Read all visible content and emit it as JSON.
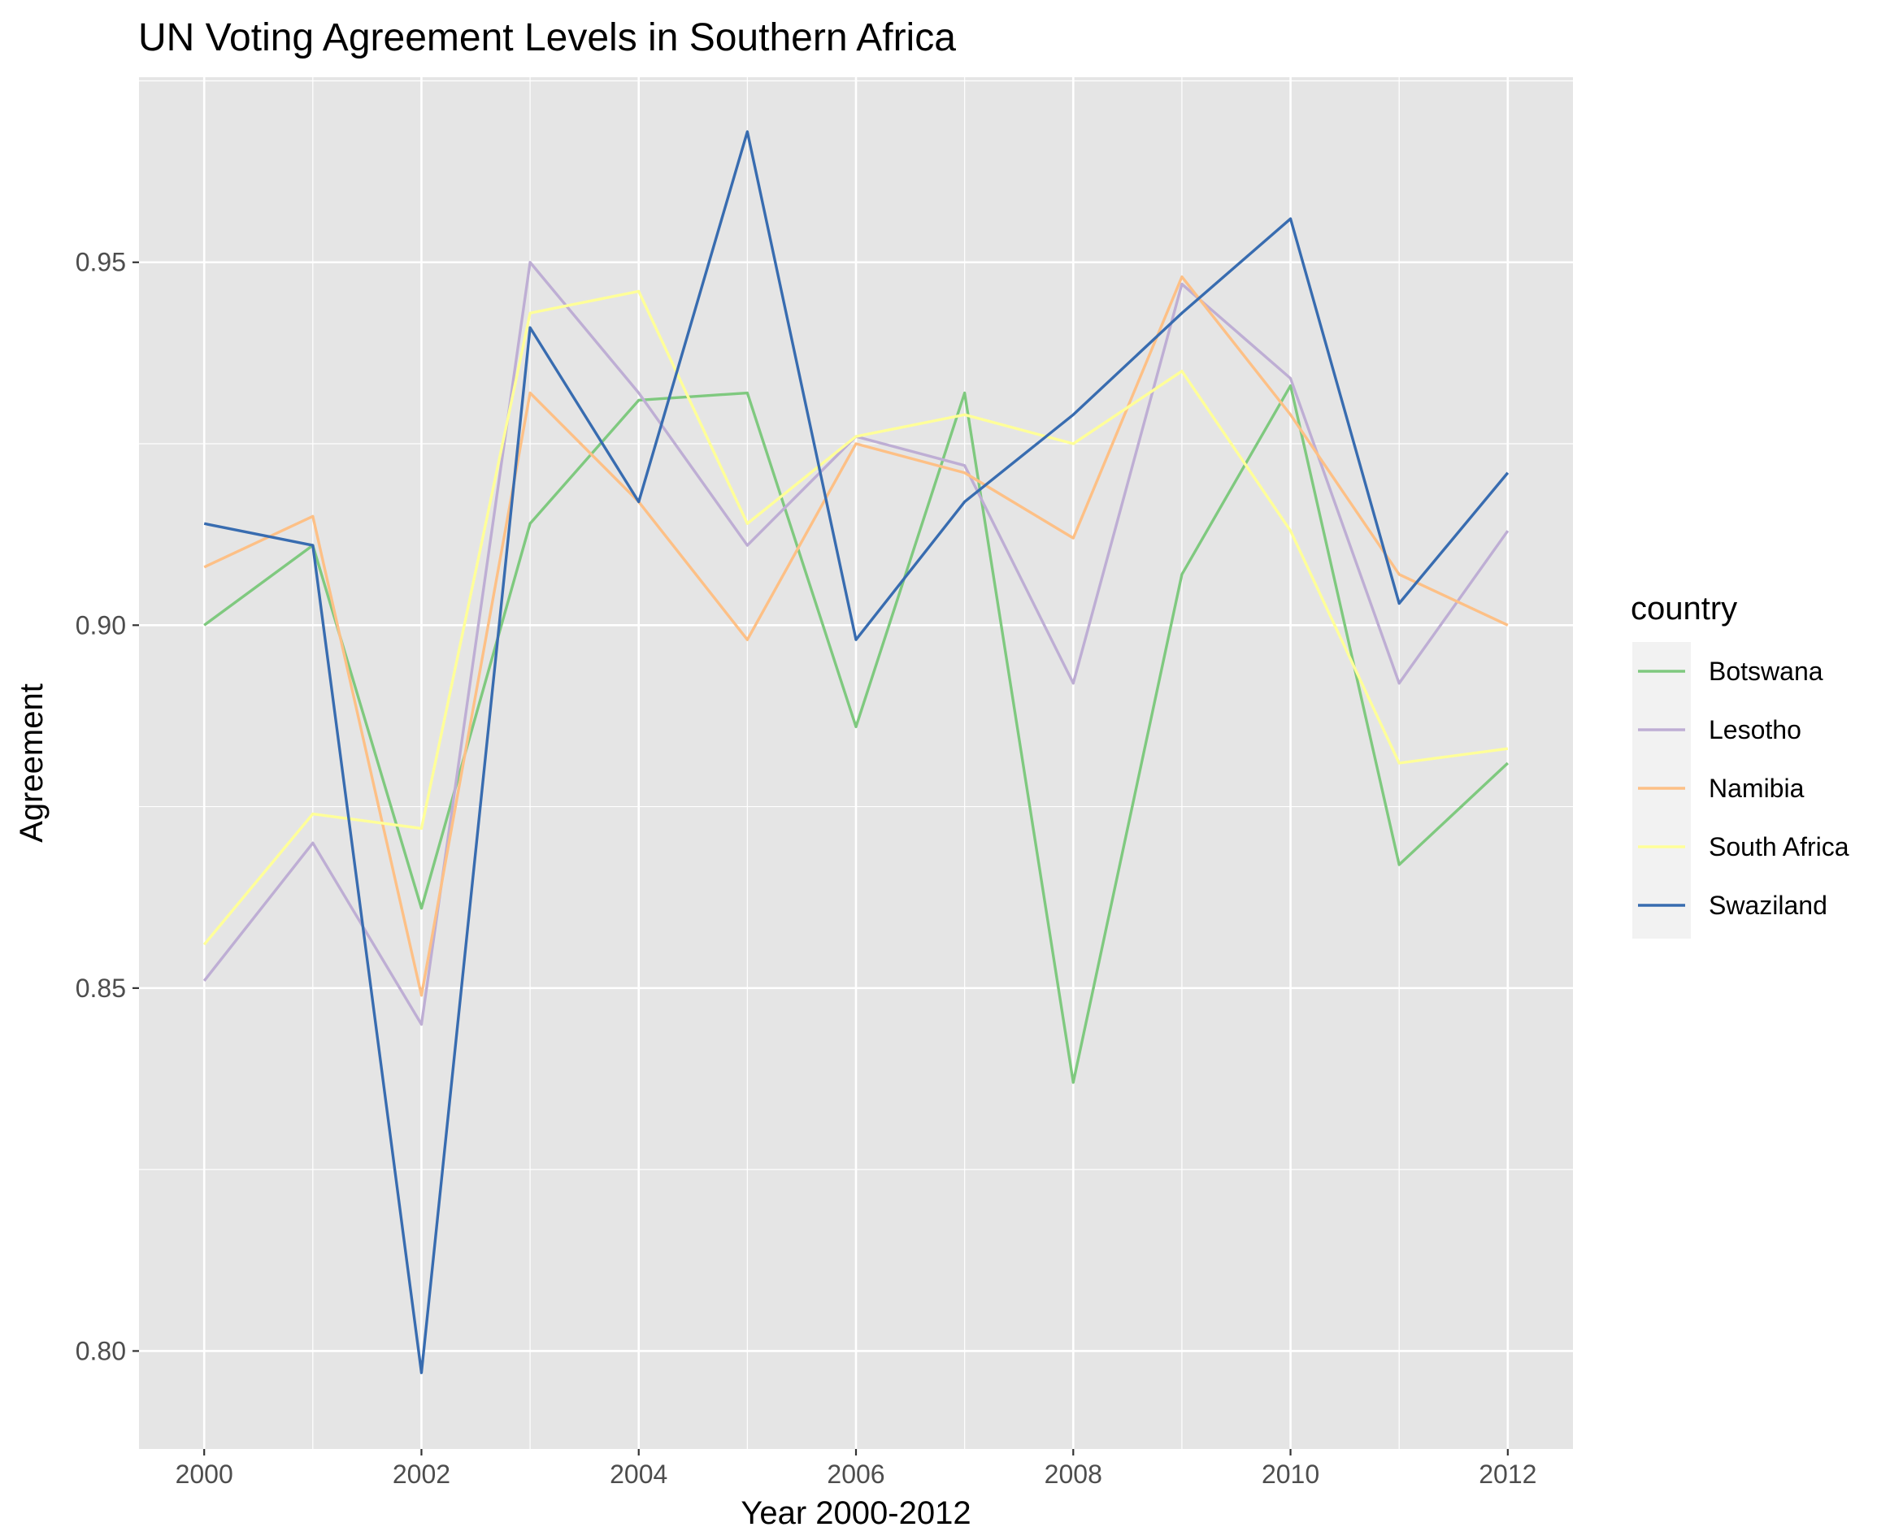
{
  "chart_data": {
    "type": "line",
    "title": "UN Voting Agreement Levels in Southern Africa",
    "xlabel": "Year 2000-2012",
    "ylabel": "Agreement",
    "x": [
      2000,
      2001,
      2002,
      2003,
      2004,
      2005,
      2006,
      2007,
      2008,
      2009,
      2010,
      2011,
      2012
    ],
    "xlim": [
      1999.4,
      2012.6
    ],
    "ylim": [
      0.7865,
      0.9755
    ],
    "x_ticks": [
      2000,
      2002,
      2004,
      2006,
      2008,
      2010,
      2012
    ],
    "x_tick_labels": [
      "2000",
      "2002",
      "2004",
      "2006",
      "2008",
      "2010",
      "2012"
    ],
    "y_ticks": [
      0.8,
      0.85,
      0.9,
      0.95
    ],
    "y_tick_labels": [
      "0.80",
      "0.85",
      "0.90",
      "0.95"
    ],
    "grid": true,
    "legend_title": "country",
    "legend_position": "right",
    "background": "#e5e5e5",
    "series": [
      {
        "name": "Botswana",
        "color": "#7fc97f",
        "values": [
          0.9,
          0.911,
          0.861,
          0.914,
          0.931,
          0.932,
          0.886,
          0.932,
          0.837,
          0.907,
          0.933,
          0.867,
          0.881
        ]
      },
      {
        "name": "Lesotho",
        "color": "#beaed4",
        "values": [
          0.851,
          0.87,
          0.845,
          0.95,
          0.932,
          0.911,
          0.926,
          0.922,
          0.892,
          0.947,
          0.934,
          0.892,
          0.913
        ]
      },
      {
        "name": "Namibia",
        "color": "#fdc086",
        "values": [
          0.908,
          0.915,
          0.849,
          0.932,
          0.917,
          0.898,
          0.925,
          0.921,
          0.912,
          0.948,
          0.929,
          0.907,
          0.9
        ]
      },
      {
        "name": "South Africa",
        "color": "#ffff99",
        "values": [
          0.856,
          0.874,
          0.872,
          0.943,
          0.946,
          0.914,
          0.926,
          0.929,
          0.925,
          0.935,
          0.913,
          0.881,
          0.883
        ]
      },
      {
        "name": "Swaziland",
        "color": "#386cb0",
        "values": [
          0.914,
          0.911,
          0.797,
          0.941,
          0.917,
          0.968,
          0.898,
          0.917,
          0.929,
          0.943,
          0.956,
          0.903,
          0.921
        ]
      }
    ]
  }
}
